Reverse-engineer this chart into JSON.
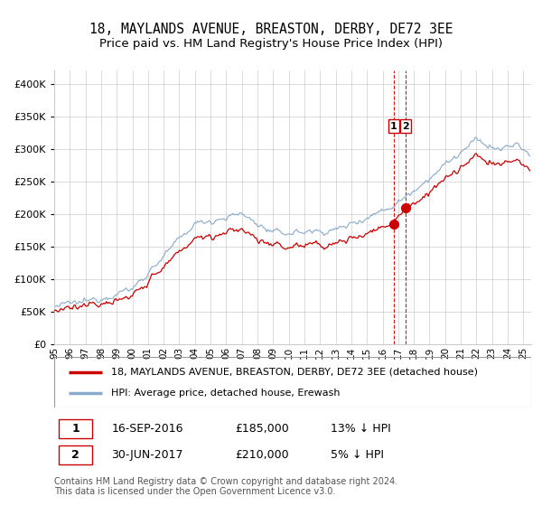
{
  "title": "18, MAYLANDS AVENUE, BREASTON, DERBY, DE72 3EE",
  "subtitle": "Price paid vs. HM Land Registry's House Price Index (HPI)",
  "ylim": [
    0,
    420000
  ],
  "yticks": [
    0,
    50000,
    100000,
    150000,
    200000,
    250000,
    300000,
    350000,
    400000
  ],
  "ytick_labels": [
    "£0",
    "£50K",
    "£100K",
    "£150K",
    "£200K",
    "£250K",
    "£300K",
    "£350K",
    "£400K"
  ],
  "legend_line1": "18, MAYLANDS AVENUE, BREASTON, DERBY, DE72 3EE (detached house)",
  "legend_line2": "HPI: Average price, detached house, Erewash",
  "transaction1_label": "1",
  "transaction1_date": "16-SEP-2016",
  "transaction1_price": "£185,000",
  "transaction1_hpi": "13% ↓ HPI",
  "transaction2_label": "2",
  "transaction2_date": "30-JUN-2017",
  "transaction2_price": "£210,000",
  "transaction2_hpi": "5% ↓ HPI",
  "footer": "Contains HM Land Registry data © Crown copyright and database right 2024.\nThis data is licensed under the Open Government Licence v3.0.",
  "property_color": "#cc0000",
  "hpi_color": "#88aacc",
  "vline_color": "#cc0000",
  "marker_color": "#cc0000",
  "background_color": "#ffffff",
  "grid_color": "#cccccc",
  "title_fontsize": 10.5,
  "tick_fontsize": 8,
  "transaction1_year": 2016.71,
  "transaction2_year": 2017.49,
  "transaction1_price_val": 185000,
  "transaction2_price_val": 210000,
  "xlim_start": 1995,
  "xlim_end": 2025.5,
  "xtick_start": 1995,
  "xtick_end": 2026
}
